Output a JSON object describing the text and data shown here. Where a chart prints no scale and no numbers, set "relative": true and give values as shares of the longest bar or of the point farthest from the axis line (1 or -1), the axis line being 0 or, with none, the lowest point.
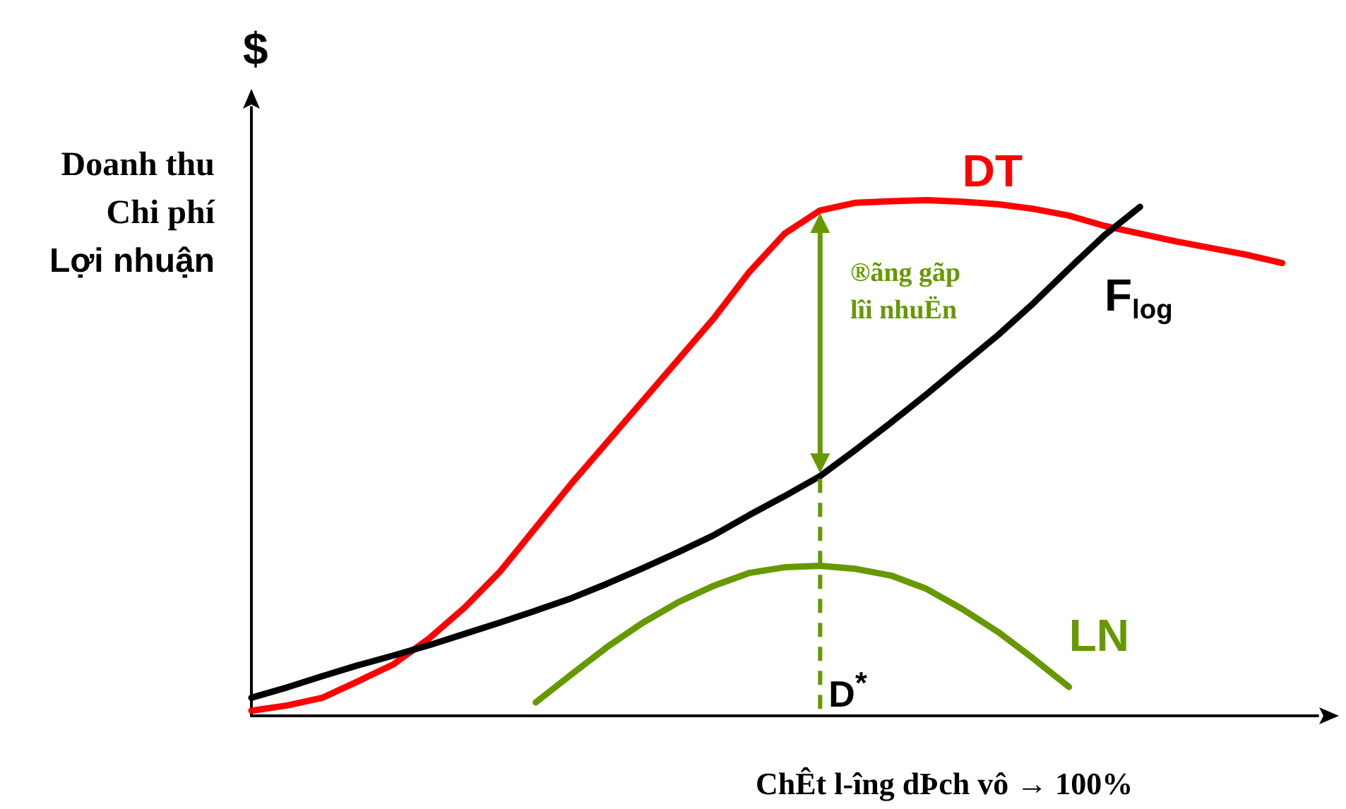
{
  "chart_data": {
    "type": "line",
    "relative": true,
    "grid": false,
    "legend": false,
    "marker": "none",
    "line_style": "solid",
    "ylabel": "Doanh thu\nChi phí\nLợi nhuận",
    "xlabel": "ChÊt l-îng dÞch vô → 100%",
    "annotations": [
      "$",
      "®ãng gãp\nlîi nhuËn",
      "D$^{*}$"
    ],
    "categories": [
      null,
      null,
      null,
      null,
      null,
      null,
      null,
      null,
      null,
      null,
      null,
      null,
      null,
      null,
      null,
      null,
      null,
      null,
      null,
      null,
      null,
      null,
      null,
      null,
      null,
      null,
      null,
      null,
      null,
      null,
      null
    ],
    "series": [
      {
        "name": "DT",
        "color": "#ff0000",
        "values": [
          0.01,
          0.02,
          0.035,
          0.067,
          0.1,
          0.15,
          0.21,
          0.28,
          0.365,
          0.45,
          0.53,
          0.61,
          0.69,
          0.77,
          0.86,
          0.935,
          0.98,
          0.995,
          0.998,
          1,
          0.997,
          0.992,
          0.983,
          0.97,
          0.95,
          0.935,
          0.92,
          0.907,
          0.894,
          0.878,
          null
        ]
      },
      {
        "name": "F$_{log}$",
        "color": "#000000",
        "values": [
          0.035,
          0.055,
          0.077,
          0.098,
          0.117,
          0.137,
          0.159,
          0.181,
          0.204,
          0.228,
          0.256,
          0.286,
          0.317,
          0.35,
          0.389,
          0.426,
          0.465,
          0.516,
          0.569,
          0.624,
          0.681,
          0.738,
          0.8,
          0.867,
          0.932,
          0.987,
          null,
          null,
          null,
          null,
          null
        ]
      },
      {
        "name": "LN",
        "color": "#669900",
        "values": [
          null,
          null,
          null,
          null,
          null,
          null,
          null,
          null,
          0.026,
          0.08,
          0.133,
          0.18,
          0.22,
          0.252,
          0.277,
          0.288,
          0.291,
          0.285,
          0.272,
          0.246,
          0.207,
          0.163,
          0.111,
          0.056,
          null,
          null,
          null,
          null,
          null,
          null,
          null
        ]
      }
    ]
  }
}
